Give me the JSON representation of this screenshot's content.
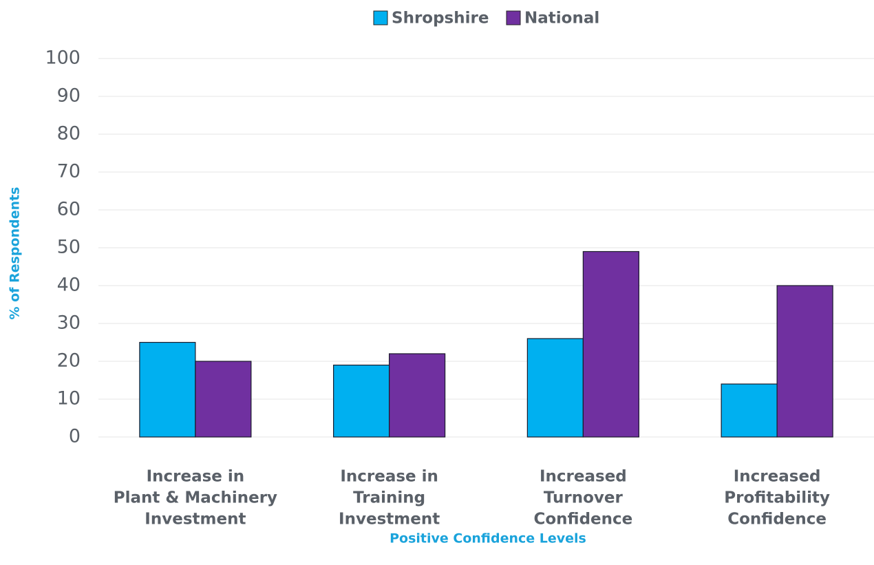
{
  "chart_data": {
    "type": "bar",
    "categories": [
      [
        "Increase in",
        "Plant & Machinery",
        "Investment"
      ],
      [
        "Increase in",
        "Training",
        "Investment"
      ],
      [
        "Increased",
        "Turnover",
        "Confidence"
      ],
      [
        "Increased",
        "Profitability",
        "Confidence"
      ]
    ],
    "series": [
      {
        "name": "Shropshire",
        "color": "#00b0f0",
        "values": [
          25,
          19,
          26,
          14
        ]
      },
      {
        "name": "National",
        "color": "#7030a0",
        "values": [
          20,
          22,
          49,
          40
        ]
      }
    ],
    "x_label": "Positive Confidence Levels",
    "y_label": "% of Respondents",
    "ylim": [
      0,
      100
    ],
    "yticks": [
      0,
      10,
      20,
      30,
      40,
      50,
      60,
      70,
      80,
      90,
      100
    ],
    "grid": true,
    "legend": "top"
  }
}
